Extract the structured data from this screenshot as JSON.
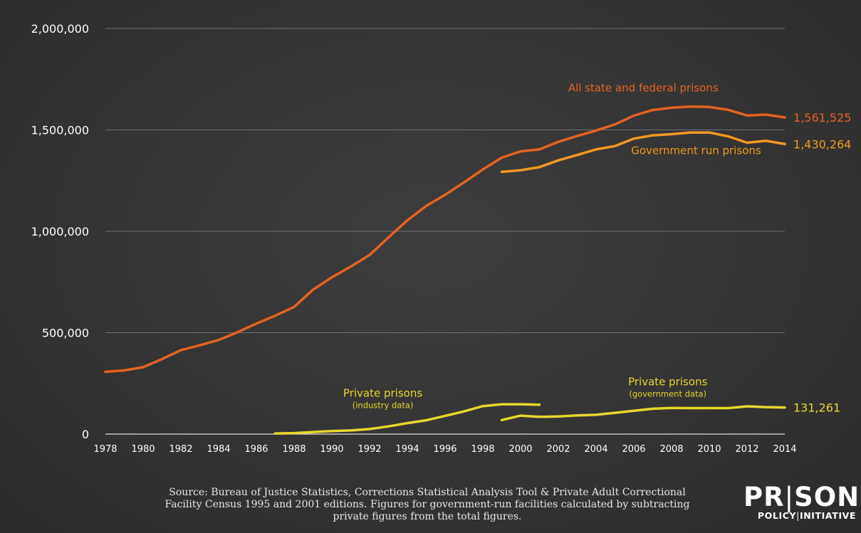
{
  "chart_data": {
    "type": "line",
    "title": "",
    "xlabel": "",
    "ylabel": "",
    "xlim": [
      1978,
      2014
    ],
    "ylim": [
      0,
      2000000
    ],
    "grid": true,
    "y_ticks": [
      {
        "value": 0,
        "label": "0"
      },
      {
        "value": 500000,
        "label": "500,000"
      },
      {
        "value": 1000000,
        "label": "1,000,000"
      },
      {
        "value": 1500000,
        "label": "1,500,000"
      },
      {
        "value": 2000000,
        "label": "2,000,000"
      }
    ],
    "x_ticks": [
      "1978",
      "1980",
      "1982",
      "1984",
      "1986",
      "1988",
      "1990",
      "1992",
      "1994",
      "1996",
      "1998",
      "2000",
      "2002",
      "2004",
      "2006",
      "2008",
      "2010",
      "2012",
      "2014"
    ],
    "series": [
      {
        "name": "All state and federal prisons",
        "sub": "",
        "color": "#e46424",
        "end_label": "1,561,525",
        "x": [
          1978,
          1979,
          1980,
          1981,
          1982,
          1983,
          1984,
          1985,
          1986,
          1987,
          1988,
          1989,
          1990,
          1991,
          1992,
          1993,
          1994,
          1995,
          1996,
          1997,
          1998,
          1999,
          2000,
          2001,
          2002,
          2003,
          2004,
          2005,
          2006,
          2007,
          2008,
          2009,
          2010,
          2011,
          2012,
          2013,
          2014
        ],
        "y": [
          307000,
          314000,
          330000,
          370000,
          414000,
          438000,
          464000,
          502000,
          545000,
          584000,
          627000,
          712000,
          773000,
          826000,
          883000,
          970000,
          1054000,
          1125000,
          1180000,
          1241000,
          1305000,
          1363000,
          1394000,
          1404000,
          1441000,
          1470000,
          1497000,
          1527000,
          1570000,
          1598000,
          1609000,
          1615000,
          1613000,
          1599000,
          1571000,
          1575000,
          1561525
        ]
      },
      {
        "name": "Government run prisons",
        "sub": "",
        "color": "#f29a22",
        "end_label": "1,430,264",
        "x": [
          1999,
          2000,
          2001,
          2002,
          2003,
          2004,
          2005,
          2006,
          2007,
          2008,
          2009,
          2010,
          2011,
          2012,
          2013,
          2014
        ],
        "y": [
          1293000,
          1301000,
          1316000,
          1350000,
          1376000,
          1404000,
          1420000,
          1457000,
          1473000,
          1479000,
          1487000,
          1487000,
          1468000,
          1437000,
          1446000,
          1430264
        ]
      },
      {
        "name": "Private prisons",
        "sub": "(industry data)",
        "color": "#e8d72b",
        "end_label": "",
        "x": [
          1987,
          1988,
          1989,
          1990,
          1991,
          1992,
          1993,
          1994,
          1995,
          1996,
          1997,
          1998,
          1999,
          2000,
          2001
        ],
        "y": [
          3000,
          5000,
          10000,
          15000,
          18000,
          25000,
          38000,
          54000,
          68000,
          90000,
          112000,
          138000,
          147000,
          147000,
          145000
        ]
      },
      {
        "name": "Private prisons",
        "sub": "(government data)",
        "color": "#e8d72b",
        "end_label": "131,261",
        "x": [
          1999,
          2000,
          2001,
          2002,
          2003,
          2004,
          2005,
          2006,
          2007,
          2008,
          2009,
          2010,
          2011,
          2012,
          2013,
          2014
        ],
        "y": [
          69000,
          91000,
          85000,
          87000,
          92000,
          95000,
          105000,
          115000,
          125000,
          129000,
          128000,
          128000,
          128000,
          137000,
          133000,
          131261
        ]
      }
    ]
  },
  "footer": {
    "source_line1": "Source: Bureau of Justice Statistics, Corrections Statistical Analysis Tool & Private Adult Correctional",
    "source_line2": "Facility Census 1995 and 2001 editions. Figures for government-run facilities calculated by subtracting",
    "source_line3": "private figures from the total figures."
  },
  "logo": {
    "top_a": "PR",
    "top_sep": "|",
    "top_b": "SON",
    "bottom_a": "POLICY",
    "bottom_sep": "|",
    "bottom_b": "INITIATIVE"
  }
}
